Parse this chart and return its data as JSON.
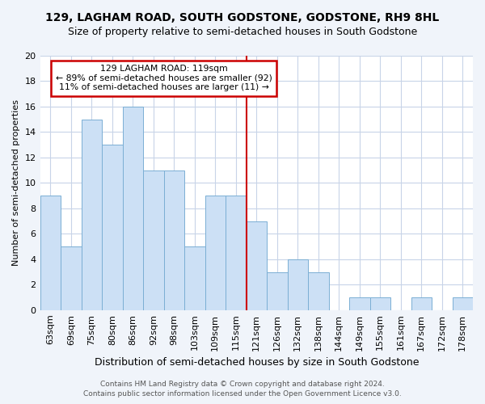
{
  "title_line1": "129, LAGHAM ROAD, SOUTH GODSTONE, GODSTONE, RH9 8HL",
  "title_line2": "Size of property relative to semi-detached houses in South Godstone",
  "xlabel": "Distribution of semi-detached houses by size in South Godstone",
  "ylabel": "Number of semi-detached properties",
  "footer_line1": "Contains HM Land Registry data © Crown copyright and database right 2024.",
  "footer_line2": "Contains public sector information licensed under the Open Government Licence v3.0.",
  "categories": [
    "63sqm",
    "69sqm",
    "75sqm",
    "80sqm",
    "86sqm",
    "92sqm",
    "98sqm",
    "103sqm",
    "109sqm",
    "115sqm",
    "121sqm",
    "126sqm",
    "132sqm",
    "138sqm",
    "144sqm",
    "149sqm",
    "155sqm",
    "161sqm",
    "167sqm",
    "172sqm",
    "178sqm"
  ],
  "values": [
    9,
    5,
    15,
    13,
    16,
    11,
    11,
    5,
    9,
    9,
    7,
    3,
    4,
    3,
    0,
    1,
    1,
    0,
    1,
    0,
    1
  ],
  "bar_color": "#cce0f5",
  "bar_edge_color": "#7bafd4",
  "plot_bg_color": "#ffffff",
  "fig_bg_color": "#f0f4fa",
  "grid_color": "#c8d4e8",
  "vline_x_index": 10,
  "vline_color": "#cc0000",
  "annotation_title": "129 LAGHAM ROAD: 119sqm",
  "annotation_line2": "← 89% of semi-detached houses are smaller (92)",
  "annotation_line3": "11% of semi-detached houses are larger (11) →",
  "annotation_box_color": "#cc0000",
  "ylim": [
    0,
    20
  ],
  "yticks": [
    0,
    2,
    4,
    6,
    8,
    10,
    12,
    14,
    16,
    18,
    20
  ],
  "title_fontsize": 10,
  "subtitle_fontsize": 9,
  "xlabel_fontsize": 9,
  "ylabel_fontsize": 8,
  "tick_fontsize": 8,
  "footer_fontsize": 6.5
}
